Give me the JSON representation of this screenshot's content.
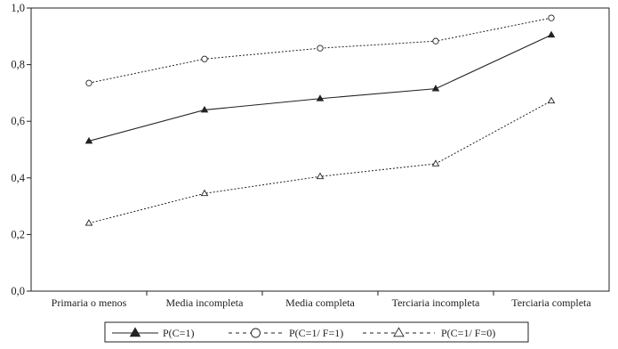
{
  "chart_data": {
    "type": "line",
    "title": "",
    "xlabel": "",
    "ylabel": "",
    "ylim": [
      0,
      1
    ],
    "yticks": [
      "0,0",
      "0,2",
      "0,4",
      "0,6",
      "0,8",
      "1,0"
    ],
    "ytick_values": [
      0,
      0.2,
      0.4,
      0.6,
      0.8,
      1.0
    ],
    "categories": [
      "Primaria o menos",
      "Media incompleta",
      "Media completa",
      "Terciaria incompleta",
      "Terciaria completa"
    ],
    "grid": false,
    "legend_position": "bottom",
    "series": [
      {
        "name": "P(C=1)",
        "marker": "filled-triangle",
        "line": "solid",
        "values": [
          0.53,
          0.64,
          0.68,
          0.715,
          0.905
        ]
      },
      {
        "name": "P(C=1/ F=1)",
        "marker": "open-circle",
        "line": "dotted",
        "values": [
          0.735,
          0.82,
          0.858,
          0.883,
          0.965
        ]
      },
      {
        "name": "P(C=1/ F=0)",
        "marker": "open-triangle",
        "line": "dotted",
        "values": [
          0.24,
          0.345,
          0.405,
          0.45,
          0.672
        ]
      }
    ]
  }
}
